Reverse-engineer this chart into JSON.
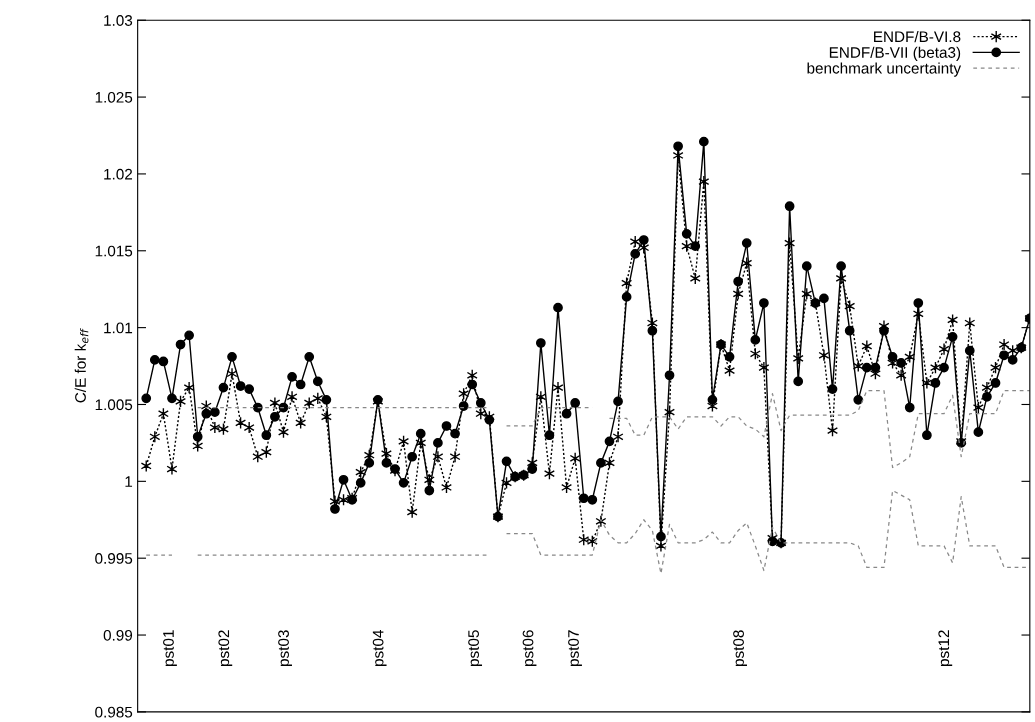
{
  "chart_data": {
    "type": "line",
    "ylabel": "C/E for k$_{eff}$",
    "categories": [
      null,
      null,
      null,
      null,
      null,
      null,
      null,
      null,
      null,
      null,
      null,
      null,
      null,
      null,
      null,
      null,
      null,
      null,
      null,
      null,
      null,
      null,
      null,
      null,
      null,
      null,
      null,
      null,
      null,
      null,
      null,
      null,
      null,
      null,
      null,
      null,
      null,
      null,
      null,
      null,
      null,
      null,
      null,
      null,
      null,
      null,
      null,
      null,
      null,
      null,
      null,
      null,
      null,
      null,
      null,
      null,
      null,
      null,
      null,
      null,
      null,
      null,
      null,
      null,
      null,
      null,
      null,
      null,
      null,
      null,
      null,
      null,
      null,
      null,
      null,
      null,
      null,
      null,
      null,
      null,
      null,
      null,
      null,
      null,
      null,
      null,
      null,
      null,
      null,
      null,
      null,
      null,
      null,
      null,
      null,
      null,
      null,
      null,
      null,
      null,
      null,
      null,
      null,
      null
    ],
    "series": [
      {
        "name": "ENDF/B-VI.8",
        "color": "#000000",
        "line_style": "dotted",
        "marker": "cross",
        "values": [
          1.001,
          1.0029,
          1.0044,
          1.0008,
          1.0052,
          1.0061,
          1.0023,
          1.0049,
          1.0035,
          1.0034,
          1.007,
          1.0038,
          1.0035,
          1.0016,
          1.0019,
          1.0051,
          1.0032,
          1.0055,
          1.0038,
          1.0051,
          1.0054,
          1.0042,
          0.9987,
          0.9988,
          0.9989,
          1.0006,
          1.0017,
          1.0052,
          1.0018,
          1.0007,
          1.0026,
          0.998,
          1.0025,
          1.0001,
          1.0016,
          0.9996,
          1.0016,
          1.0057,
          1.0069,
          1.0044,
          1.0042,
          0.9977,
          0.9999,
          1.0003,
          1.0004,
          1.0012,
          1.0055,
          1.0005,
          1.0061,
          0.9996,
          1.0015,
          0.9962,
          0.9961,
          0.9974,
          1.0012,
          1.0029,
          1.0129,
          1.0156,
          1.0152,
          1.0103,
          0.9958,
          1.0045,
          1.0212,
          1.0153,
          1.0132,
          1.0195,
          1.0049,
          1.0089,
          1.0072,
          1.0122,
          1.0142,
          1.0083,
          1.0074,
          0.9963,
          0.996,
          1.0155,
          1.008,
          1.0122,
          1.0116,
          1.0082,
          1.0033,
          1.0132,
          1.0114,
          1.0075,
          1.0088,
          1.007,
          1.0101,
          1.0077,
          1.0069,
          1.0081,
          1.0109,
          1.0064,
          1.0074,
          1.0086,
          1.0105,
          1.0026,
          1.0103,
          1.0048,
          1.0061,
          1.0074,
          1.0089,
          1.0085,
          1.0087,
          1.0106
        ]
      },
      {
        "name": "ENDF/B-VII (beta3)",
        "color": "#000000",
        "line_style": "solid",
        "marker": "circle",
        "values": [
          1.0054,
          1.0079,
          1.0078,
          1.0054,
          1.0089,
          1.0095,
          1.0029,
          1.0044,
          1.0045,
          1.0061,
          1.0081,
          1.0062,
          1.006,
          1.0048,
          1.003,
          1.0042,
          1.0048,
          1.0068,
          1.0063,
          1.0081,
          1.0065,
          1.0053,
          0.9982,
          1.0001,
          0.9988,
          0.9999,
          1.0012,
          1.0053,
          1.0012,
          1.0008,
          0.9999,
          1.0016,
          1.0031,
          0.9994,
          1.0025,
          1.0036,
          1.0031,
          1.0049,
          1.0063,
          1.0051,
          1.004,
          0.9977,
          1.0013,
          1.0003,
          1.0004,
          1.0008,
          1.009,
          1.003,
          1.0113,
          1.0044,
          1.0051,
          0.9989,
          0.9988,
          1.0012,
          1.0026,
          1.0052,
          1.012,
          1.0148,
          1.0157,
          1.0098,
          0.9964,
          1.0069,
          1.0218,
          1.0161,
          1.0153,
          1.0221,
          1.0053,
          1.0089,
          1.0081,
          1.013,
          1.0155,
          1.0092,
          1.0116,
          0.9961,
          0.996,
          1.0179,
          1.0065,
          1.014,
          1.0116,
          1.0119,
          1.006,
          1.014,
          1.0098,
          1.0053,
          1.0074,
          1.0074,
          1.0098,
          1.0081,
          1.0077,
          1.0048,
          1.0116,
          1.003,
          1.0064,
          1.0074,
          1.0094,
          1.0025,
          1.0085,
          1.0032,
          1.0055,
          1.0064,
          1.0082,
          1.0079,
          1.0087,
          1.0106
        ]
      },
      {
        "name": "benchmark uncertainty",
        "color": "#888888",
        "line_style": "dashed",
        "marker": "none",
        "values": [
          null,
          null,
          null,
          null,
          null,
          null,
          1.0048,
          1.0048,
          1.0048,
          1.0048,
          1.0048,
          1.0048,
          1.0048,
          1.0048,
          1.0048,
          1.0048,
          1.0048,
          1.0048,
          1.0048,
          1.0048,
          1.0048,
          1.0048,
          1.0048,
          1.0048,
          1.0048,
          1.0048,
          1.0048,
          1.0048,
          1.0048,
          1.0048,
          1.0048,
          1.0048,
          1.0048,
          1.0048,
          1.0048,
          1.0048,
          1.0048,
          1.0048,
          1.0048,
          1.0048,
          1.0048,
          null,
          1.0036,
          1.0036,
          1.0036,
          1.0036,
          1.0048,
          1.0048,
          1.0048,
          1.0048,
          1.0048,
          1.0048,
          1.0048,
          null,
          1.0041,
          1.0041,
          1.0041,
          1.003,
          1.003,
          1.0042,
          1.0042,
          1.0042,
          1.0034,
          1.0042,
          1.0042,
          1.0042,
          1.0042,
          1.0036,
          1.0042,
          1.0042,
          1.0036,
          1.0034,
          1.0029,
          1.0057,
          1.0033,
          1.0043,
          1.0043,
          1.0043,
          1.0043,
          1.0043,
          1.0043,
          1.0043,
          1.0043,
          1.0046,
          1.0059,
          1.0059,
          1.0059,
          1.0009,
          1.0012,
          1.0016,
          1.0044,
          1.0044,
          1.0044,
          1.0044,
          1.0056,
          1.0016,
          1.0044,
          1.0044,
          1.0044,
          1.0044,
          1.0059,
          1.0059,
          1.0059,
          1.0059
        ]
      },
      {
        "color": "#888888",
        "line_style": "dashed",
        "marker": "none",
        "values": [
          0.9952,
          0.9952,
          0.9952,
          0.9952,
          null,
          null,
          0.9952,
          0.9952,
          0.9952,
          0.9952,
          0.9952,
          0.9952,
          0.9952,
          0.9952,
          0.9952,
          0.9952,
          0.9952,
          0.9952,
          0.9952,
          0.9952,
          0.9952,
          0.9952,
          0.9952,
          0.9952,
          0.9952,
          0.9952,
          0.9952,
          0.9952,
          0.9952,
          0.9952,
          0.9952,
          0.9952,
          0.9952,
          0.9952,
          0.9952,
          0.9952,
          0.9952,
          0.9952,
          0.9952,
          0.9952,
          0.9952,
          null,
          0.9966,
          0.9966,
          0.9966,
          0.9966,
          0.9952,
          0.9952,
          0.9952,
          0.9952,
          0.9952,
          0.9952,
          0.9952,
          0.9975,
          0.9965,
          0.996,
          0.996,
          0.9966,
          0.9975,
          0.9968,
          0.994,
          0.9972,
          0.996,
          0.996,
          0.996,
          0.9962,
          0.9967,
          0.996,
          0.996,
          0.9968,
          0.9973,
          0.9958,
          0.9942,
          0.997,
          0.996,
          0.996,
          0.996,
          0.996,
          0.996,
          0.996,
          0.996,
          0.996,
          0.996,
          0.9958,
          0.9944,
          0.9944,
          0.9944,
          0.9994,
          0.9991,
          0.9988,
          0.9958,
          0.9958,
          0.9958,
          0.9958,
          0.9947,
          0.999,
          0.9958,
          0.9958,
          0.9958,
          0.9958,
          0.9944,
          0.9944,
          0.9944,
          0.9944
        ]
      }
    ],
    "ylim": [
      0.985,
      1.03
    ],
    "yticks": [
      {
        "value": 0.985,
        "label": "0.985"
      },
      {
        "value": 0.99,
        "label": "0.99"
      },
      {
        "value": 0.995,
        "label": "0.995"
      },
      {
        "value": 1,
        "label": "1"
      },
      {
        "value": 1.005,
        "label": "1.005"
      },
      {
        "value": 1.01,
        "label": "1.01"
      },
      {
        "value": 1.015,
        "label": "1.015"
      },
      {
        "value": 1.02,
        "label": "1.02"
      },
      {
        "value": 1.025,
        "label": "1.025"
      },
      {
        "value": 1.03,
        "label": "1.03"
      }
    ],
    "tick_labels": "y",
    "grid": false,
    "legend": "top right",
    "annotations": [
      "pst01",
      "pst02",
      "pst03",
      "pst04",
      "pst05",
      "pst06",
      "pst07",
      "pst08",
      "pst12"
    ]
  }
}
